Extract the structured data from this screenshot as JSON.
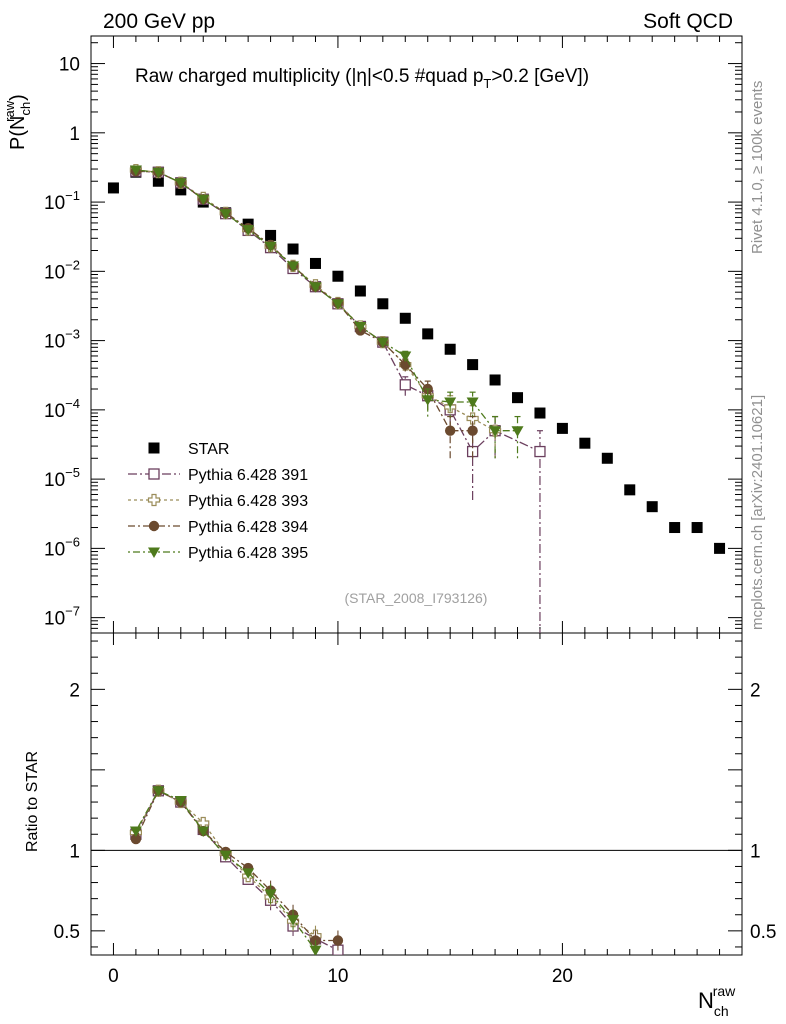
{
  "header": {
    "left_label": "200 GeV pp",
    "right_label": "Soft QCD"
  },
  "side_labels": {
    "rivet": "Rivet 4.1.0, ≥ 100k events",
    "mcplots": "mcplots.cern.ch [arXiv:2401.10621]"
  },
  "colors": {
    "star": "#000000",
    "p391": "#6b3f5e",
    "p393": "#9b8d5a",
    "p394": "#6b4a2f",
    "p395": "#4e7a1c"
  },
  "chart_data": [
    {
      "type": "scatter",
      "title": "Raw charged multiplicity (|η|<0.5 #quad p_T>0.2 [GeV])",
      "title_parts": {
        "main": "Raw charged multiplicity (|",
        "eta": "η",
        "mid": "|<0.5 #quad p",
        "sub": "T",
        "end": ">0.2 [GeV])"
      },
      "ylabel": "P(N_ch^raw)",
      "ylabel_parts": {
        "main": "P(N",
        "sub": "ch",
        "sup": "raw",
        "close": ")"
      },
      "yscale": "log",
      "ylim": [
        6e-08,
        25
      ],
      "xlim": [
        -1,
        28
      ],
      "watermark": "(STAR_2008_I793126)",
      "y_ticks": [
        {
          "value": 10,
          "label": "10"
        },
        {
          "value": 1,
          "label": "1"
        },
        {
          "value": 0.1,
          "base": "10",
          "exp": "−1"
        },
        {
          "value": 0.01,
          "base": "10",
          "exp": "−2"
        },
        {
          "value": 0.001,
          "base": "10",
          "exp": "−3"
        },
        {
          "value": 0.0001,
          "base": "10",
          "exp": "−4"
        },
        {
          "value": 1e-05,
          "base": "10",
          "exp": "−5"
        },
        {
          "value": 1e-06,
          "base": "10",
          "exp": "−6"
        },
        {
          "value": 1e-07,
          "base": "10",
          "exp": "−7"
        }
      ],
      "legend": [
        {
          "key": "star",
          "label": "STAR",
          "marker": "square"
        },
        {
          "key": "p391",
          "label": "Pythia 6.428 391",
          "marker": "open-square"
        },
        {
          "key": "p393",
          "label": "Pythia 6.428 393",
          "marker": "open-cross"
        },
        {
          "key": "p394",
          "label": "Pythia 6.428 394",
          "marker": "circle"
        },
        {
          "key": "p395",
          "label": "Pythia 6.428 395",
          "marker": "triangle-down"
        }
      ],
      "series": [
        {
          "key": "star",
          "name": "STAR",
          "x": [
            0,
            1,
            2,
            3,
            4,
            5,
            6,
            7,
            8,
            9,
            10,
            11,
            12,
            13,
            14,
            15,
            16,
            17,
            18,
            19,
            20,
            21,
            22,
            23,
            24,
            25,
            26,
            27
          ],
          "y": [
            0.16,
            0.27,
            0.2,
            0.15,
            0.1,
            0.07,
            0.048,
            0.033,
            0.021,
            0.013,
            0.0085,
            0.0052,
            0.0034,
            0.0021,
            0.00125,
            0.00075,
            0.00045,
            0.00027,
            0.00015,
            9e-05,
            5.4e-05,
            3.3e-05,
            2e-05,
            7e-06,
            4e-06,
            2e-06,
            2e-06,
            1e-06
          ]
        },
        {
          "key": "p391",
          "name": "Pythia 6.428 391",
          "x": [
            1,
            2,
            3,
            4,
            5,
            6,
            7,
            8,
            9,
            10,
            11,
            12,
            13,
            14,
            15,
            16,
            17,
            19
          ],
          "y": [
            0.28,
            0.27,
            0.19,
            0.11,
            0.068,
            0.039,
            0.022,
            0.011,
            0.006,
            0.0034,
            0.0016,
            0.00095,
            0.00023,
            0.00016,
            0.0001,
            2.5e-05,
            5e-05,
            2.5e-05
          ],
          "err": [
            0,
            0,
            0,
            0,
            0,
            0,
            0,
            0,
            0,
            0,
            0.0002,
            0.0001,
            7e-05,
            6e-05,
            4e-05,
            2e-05,
            3e-05,
            2.5e-05
          ]
        },
        {
          "key": "p393",
          "name": "Pythia 6.428 393",
          "x": [
            1,
            2,
            3,
            4,
            5,
            6,
            7,
            8,
            9,
            10,
            11,
            12,
            13,
            14,
            15,
            16,
            17
          ],
          "y": [
            0.29,
            0.27,
            0.19,
            0.115,
            0.07,
            0.04,
            0.023,
            0.012,
            0.0063,
            0.0035,
            0.0016,
            0.00095,
            0.00045,
            0.00016,
            0.00011,
            7.5e-05,
            5e-05
          ],
          "err": [
            0,
            0,
            0,
            0,
            0,
            0,
            0,
            0,
            0,
            0,
            0.0002,
            0.0001,
            9e-05,
            6e-05,
            5e-05,
            4e-05,
            3e-05
          ]
        },
        {
          "key": "p394",
          "name": "Pythia 6.428 394",
          "x": [
            1,
            2,
            3,
            4,
            5,
            6,
            7,
            8,
            9,
            10,
            11,
            12,
            13,
            14,
            15,
            16
          ],
          "y": [
            0.28,
            0.27,
            0.19,
            0.11,
            0.07,
            0.042,
            0.024,
            0.012,
            0.006,
            0.0035,
            0.0014,
            0.00095,
            0.00045,
            0.0002,
            5e-05,
            5e-05
          ],
          "err": [
            0,
            0,
            0,
            0,
            0,
            0,
            0,
            0,
            0,
            0,
            0.0002,
            0.0001,
            9e-05,
            6e-05,
            3e-05,
            3e-05
          ]
        },
        {
          "key": "p395",
          "name": "Pythia 6.428 395",
          "x": [
            1,
            2,
            3,
            4,
            5,
            6,
            7,
            8,
            9,
            10,
            11,
            12,
            13,
            14,
            15,
            16,
            17,
            18
          ],
          "y": [
            0.29,
            0.27,
            0.19,
            0.11,
            0.068,
            0.04,
            0.023,
            0.012,
            0.006,
            0.0034,
            0.0016,
            0.00095,
            0.0006,
            0.00014,
            0.00013,
            0.00013,
            5e-05,
            5e-05
          ],
          "err": [
            0,
            0,
            0,
            0,
            0,
            0,
            0,
            0,
            0,
            0,
            0.0002,
            0.0001,
            0.0001,
            6e-05,
            5e-05,
            5e-05,
            3e-05,
            3e-05
          ]
        }
      ]
    },
    {
      "type": "scatter",
      "ylabel": "Ratio to STAR",
      "xlabel": "N_ch^raw",
      "xlabel_parts": {
        "main": "N",
        "sub": "ch",
        "sup": "raw"
      },
      "ylim": [
        0.35,
        2.35
      ],
      "xlim": [
        -1,
        28
      ],
      "x_ticks": [
        0,
        10,
        20
      ],
      "y_ticks_left": [
        0.5,
        1,
        2
      ],
      "y_ticks_right": [
        0.5,
        1,
        2
      ],
      "reference_line": 1,
      "series": [
        {
          "key": "p391",
          "x": [
            1,
            2,
            3,
            4,
            5,
            6,
            7,
            8,
            9,
            10
          ],
          "y": [
            1.1,
            1.37,
            1.3,
            1.13,
            0.96,
            0.82,
            0.69,
            0.53,
            0.45,
            0.38
          ]
        },
        {
          "key": "p393",
          "x": [
            1,
            2,
            3,
            4,
            5,
            6,
            7,
            8,
            9
          ],
          "y": [
            1.11,
            1.37,
            1.3,
            1.17,
            0.98,
            0.84,
            0.71,
            0.56,
            0.47
          ]
        },
        {
          "key": "p394",
          "x": [
            1,
            2,
            3,
            4,
            5,
            6,
            7,
            8,
            9,
            10
          ],
          "y": [
            1.07,
            1.37,
            1.3,
            1.12,
            0.99,
            0.89,
            0.75,
            0.6,
            0.44,
            0.44
          ]
        },
        {
          "key": "p395",
          "x": [
            1,
            2,
            3,
            4,
            5,
            6,
            7,
            8,
            9
          ],
          "y": [
            1.12,
            1.37,
            1.31,
            1.12,
            0.97,
            0.86,
            0.73,
            0.57,
            0.38
          ]
        }
      ]
    }
  ]
}
